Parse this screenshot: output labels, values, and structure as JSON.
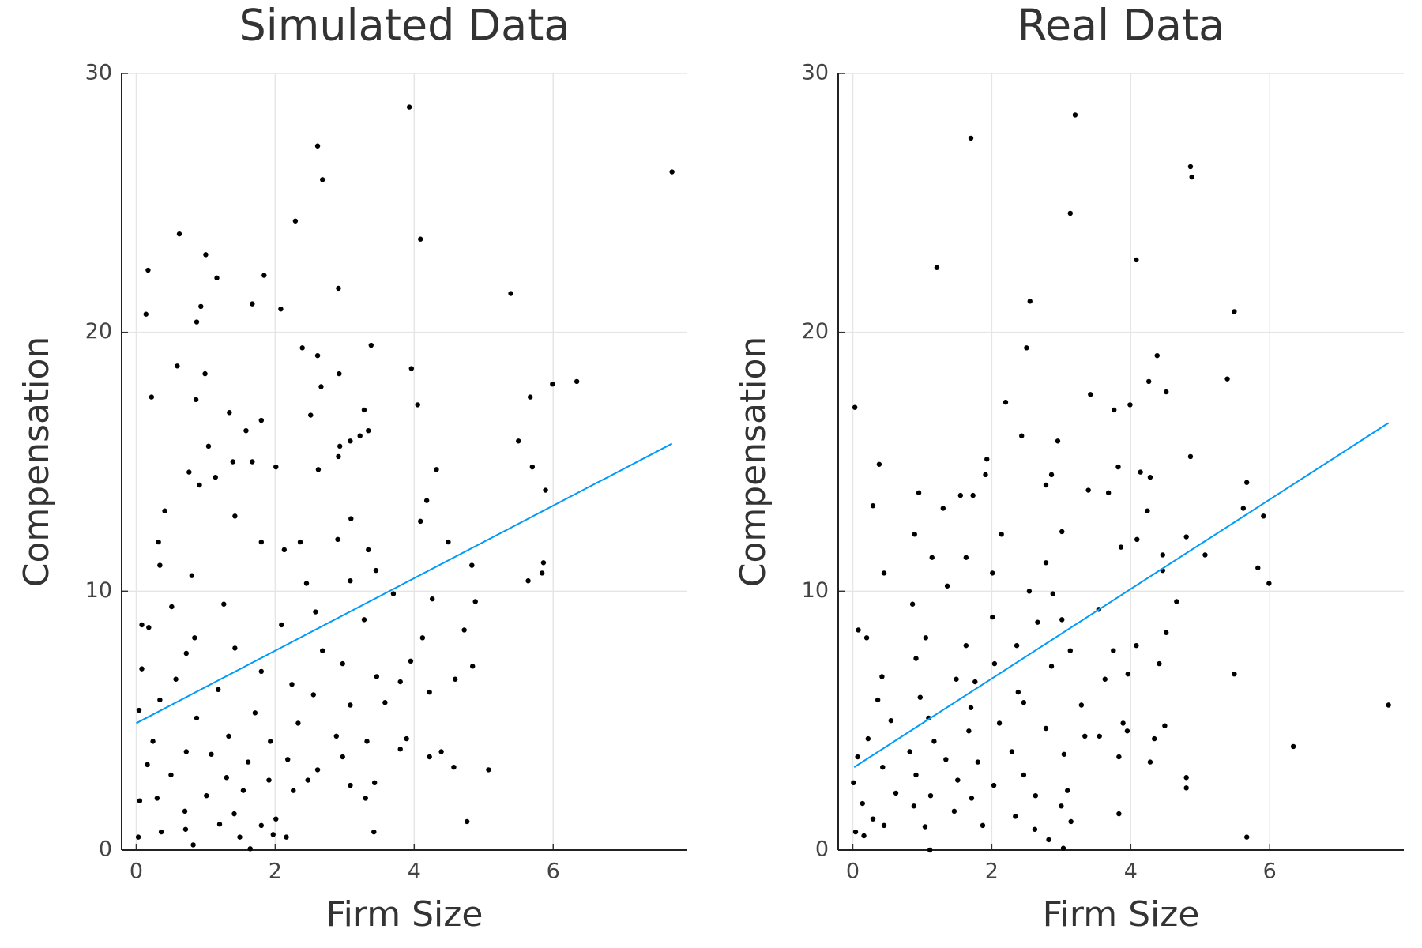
{
  "chart_data": [
    {
      "type": "scatter",
      "title": "Simulated Data",
      "x_label": "Firm Size",
      "y_label": "Compensation",
      "xlim": [
        -0.21,
        7.93
      ],
      "ylim": [
        0,
        30
      ],
      "xticks": [
        0,
        2,
        4,
        6
      ],
      "yticks": [
        0,
        10,
        20,
        30
      ],
      "grid": true,
      "series": [
        {
          "type": "scatter",
          "color": "#000000",
          "x": [
            7.71,
            3.93,
            2.61,
            2.68,
            2.29,
            4.09,
            0.62,
            1.0,
            0.17,
            1.16,
            1.84,
            2.91,
            5.39,
            1.67,
            2.08,
            0.93,
            0.14,
            0.87,
            3.38,
            2.39,
            2.61,
            0.59,
            3.96,
            0.99,
            2.92,
            6.34,
            5.99,
            2.66,
            0.22,
            5.67,
            0.86,
            4.05,
            3.28,
            1.34,
            2.51,
            1.8,
            1.58,
            3.34,
            3.22,
            5.5,
            3.08,
            2.93,
            1.04,
            2.91,
            1.39,
            1.67,
            5.7,
            4.32,
            2.62,
            0.76,
            2.01,
            1.14,
            0.91,
            5.89,
            0.41,
            4.18,
            4.09,
            3.09,
            1.42,
            0.32,
            1.8,
            2.9,
            4.49,
            2.13,
            3.34,
            2.36,
            5.86,
            0.34,
            4.83,
            5.64,
            5.84,
            0.8,
            3.08,
            2.45,
            3.45,
            3.7,
            4.26,
            4.88,
            1.26,
            2.58,
            0.51,
            0.08,
            0.18,
            2.09,
            3.28,
            0.84,
            4.72,
            4.12,
            1.42,
            0.72,
            2.68,
            2.97,
            3.95,
            4.84,
            0.08,
            1.8,
            3.46,
            0.57,
            4.59,
            1.18,
            3.8,
            2.24,
            4.22,
            2.55,
            0.34,
            0.04,
            1.71,
            3.08,
            0.87,
            3.58,
            2.33,
            3.89,
            1.33,
            1.93,
            2.88,
            0.24,
            3.32,
            0.72,
            4.39,
            1.08,
            2.18,
            4.22,
            3.8,
            1.61,
            2.97,
            0.16,
            4.57,
            5.07,
            2.61,
            0.5,
            1.3,
            1.91,
            3.43,
            3.08,
            0.05,
            0.3,
            1.01,
            1.54,
            2.26,
            2.47,
            3.3,
            0.7,
            1.41,
            2.01,
            4.76,
            1.2,
            0.71,
            1.8,
            0.36,
            3.42,
            2.16,
            0.03,
            1.49,
            0.82,
            1.64,
            1.97
          ],
          "values": [
            26.2,
            28.7,
            27.2,
            25.9,
            24.3,
            23.6,
            23.8,
            23.0,
            22.4,
            22.1,
            22.2,
            21.7,
            21.5,
            21.1,
            20.9,
            21.0,
            20.7,
            20.4,
            19.5,
            19.4,
            19.1,
            18.7,
            18.6,
            18.4,
            18.4,
            18.1,
            18.0,
            17.9,
            17.5,
            17.5,
            17.4,
            17.2,
            17.0,
            16.9,
            16.8,
            16.6,
            16.2,
            16.2,
            16.0,
            15.8,
            15.8,
            15.6,
            15.6,
            15.2,
            15.0,
            15.0,
            14.8,
            14.7,
            14.7,
            14.6,
            14.8,
            14.4,
            14.1,
            13.9,
            13.1,
            13.5,
            12.7,
            12.8,
            12.9,
            11.9,
            11.9,
            12.0,
            11.9,
            11.6,
            11.6,
            11.9,
            11.1,
            11.0,
            11.0,
            10.4,
            10.7,
            10.6,
            10.4,
            10.3,
            10.8,
            9.9,
            9.7,
            9.6,
            9.5,
            9.2,
            9.4,
            8.7,
            8.6,
            8.7,
            8.9,
            8.2,
            8.5,
            8.2,
            7.8,
            7.6,
            7.7,
            7.2,
            7.3,
            7.1,
            7.0,
            6.9,
            6.7,
            6.6,
            6.6,
            6.2,
            6.5,
            6.4,
            6.1,
            6.0,
            5.8,
            5.4,
            5.3,
            5.6,
            5.1,
            5.7,
            4.9,
            4.3,
            4.4,
            4.2,
            4.4,
            4.2,
            4.2,
            3.8,
            3.8,
            3.7,
            3.5,
            3.6,
            3.9,
            3.4,
            3.6,
            3.3,
            3.2,
            3.1,
            3.1,
            2.9,
            2.8,
            2.7,
            2.6,
            2.5,
            1.9,
            2.0,
            2.1,
            2.3,
            2.3,
            2.7,
            2.0,
            1.5,
            1.4,
            1.2,
            1.1,
            1.0,
            0.8,
            0.95,
            0.7,
            0.7,
            0.5,
            0.5,
            0.5,
            0.2,
            0.05,
            0.6
          ]
        },
        {
          "type": "line",
          "color": "#009af9",
          "x": [
            0,
            7.71
          ],
          "values": [
            4.9,
            15.7
          ]
        }
      ]
    },
    {
      "type": "scatter",
      "title": "Real Data",
      "x_label": "Firm Size",
      "y_label": "Compensation",
      "xlim": [
        -0.21,
        7.93
      ],
      "ylim": [
        0,
        30
      ],
      "xticks": [
        0,
        2,
        4,
        6
      ],
      "yticks": [
        0,
        10,
        20,
        30
      ],
      "grid": true,
      "series": [
        {
          "type": "scatter",
          "color": "#000000",
          "x": [
            3.2,
            1.7,
            4.86,
            4.88,
            3.13,
            4.08,
            1.21,
            2.55,
            5.49,
            2.5,
            4.38,
            5.39,
            4.26,
            4.51,
            3.42,
            0.03,
            2.2,
            3.99,
            3.76,
            2.43,
            2.95,
            4.86,
            1.93,
            0.38,
            3.82,
            4.14,
            1.91,
            2.86,
            4.28,
            5.67,
            2.78,
            0.95,
            1.73,
            3.39,
            3.68,
            1.55,
            0.29,
            1.3,
            5.62,
            5.91,
            4.24,
            2.14,
            0.89,
            3.01,
            4.09,
            4.8,
            3.86,
            1.63,
            1.14,
            5.07,
            4.46,
            5.83,
            2.78,
            0.45,
            2.01,
            4.46,
            5.99,
            1.36,
            2.54,
            2.88,
            4.66,
            0.86,
            3.54,
            2.01,
            3.01,
            2.66,
            0.08,
            4.51,
            1.05,
            0.2,
            4.08,
            2.36,
            1.63,
            3.13,
            3.75,
            0.91,
            2.04,
            2.86,
            4.41,
            5.49,
            0.42,
            1.49,
            3.96,
            3.63,
            1.76,
            2.38,
            0.36,
            0.97,
            1.7,
            2.46,
            3.29,
            1.09,
            0.55,
            2.11,
            4.49,
            3.89,
            1.67,
            2.78,
            3.34,
            3.55,
            3.95,
            1.17,
            0.22,
            4.34,
            0.82,
            2.29,
            1.34,
            3.04,
            3.83,
            1.8,
            6.34,
            4.28,
            0.07,
            0.43,
            0.91,
            2.46,
            1.51,
            4.8,
            0.01,
            2.03,
            3.09,
            4.8,
            0.62,
            1.12,
            1.71,
            2.63,
            0.14,
            0.88,
            3.0,
            1.46,
            3.83,
            2.34,
            0.29,
            1.04,
            0.45,
            2.62,
            1.87,
            3.14,
            7.71,
            0.04,
            0.16,
            2.82,
            5.67,
            1.11,
            3.03
          ],
          "values": [
            28.4,
            27.5,
            26.4,
            26.0,
            24.6,
            22.8,
            22.5,
            21.2,
            20.8,
            19.4,
            19.1,
            18.2,
            18.1,
            17.7,
            17.6,
            17.1,
            17.3,
            17.2,
            17.0,
            16.0,
            15.8,
            15.2,
            15.1,
            14.9,
            14.8,
            14.6,
            14.5,
            14.5,
            14.4,
            14.2,
            14.1,
            13.8,
            13.7,
            13.9,
            13.8,
            13.7,
            13.3,
            13.2,
            13.2,
            12.9,
            13.1,
            12.2,
            12.2,
            12.3,
            12.0,
            12.1,
            11.7,
            11.3,
            11.3,
            11.4,
            11.4,
            10.9,
            11.1,
            10.7,
            10.7,
            10.8,
            10.3,
            10.2,
            10.0,
            9.9,
            9.6,
            9.5,
            9.3,
            9.0,
            8.9,
            8.8,
            8.5,
            8.4,
            8.2,
            8.2,
            7.9,
            7.9,
            7.9,
            7.7,
            7.7,
            7.4,
            7.2,
            7.1,
            7.2,
            6.8,
            6.7,
            6.6,
            6.8,
            6.6,
            6.5,
            6.1,
            5.8,
            5.9,
            5.5,
            5.7,
            5.6,
            5.1,
            5.0,
            4.9,
            4.8,
            4.9,
            4.6,
            4.7,
            4.4,
            4.4,
            4.6,
            4.2,
            4.3,
            4.3,
            3.8,
            3.8,
            3.5,
            3.7,
            3.6,
            3.4,
            4.0,
            3.4,
            3.6,
            3.2,
            2.9,
            2.9,
            2.7,
            2.8,
            2.6,
            2.5,
            2.3,
            2.4,
            2.2,
            2.1,
            2.0,
            2.1,
            1.8,
            1.7,
            1.7,
            1.5,
            1.4,
            1.3,
            1.2,
            0.9,
            0.95,
            0.8,
            0.95,
            1.1,
            5.6,
            0.7,
            0.55,
            0.4,
            0.5,
            0.0,
            0.07
          ]
        },
        {
          "type": "line",
          "color": "#009af9",
          "x": [
            0.02,
            7.71
          ],
          "values": [
            3.2,
            16.5
          ]
        }
      ]
    }
  ]
}
